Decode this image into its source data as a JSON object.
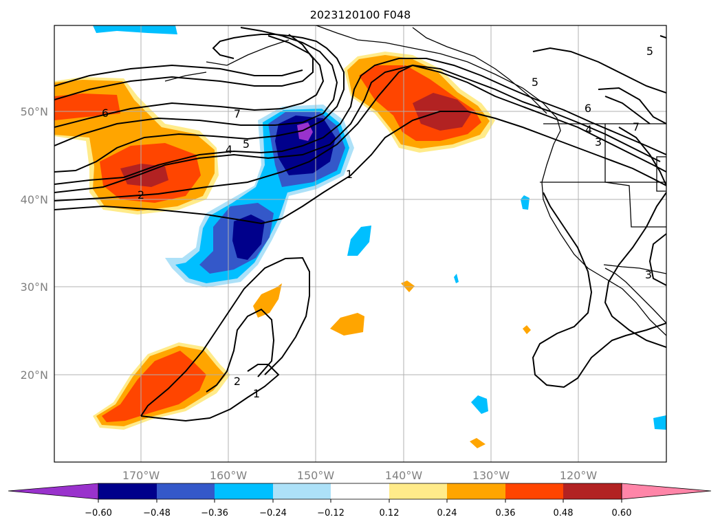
{
  "title": "2023120100 F048",
  "map": {
    "lat_labels": [
      "50°N",
      "40°N",
      "30°N",
      "20°N"
    ],
    "lon_labels": [
      "170°W",
      "160°W",
      "150°W",
      "140°W",
      "130°W",
      "120°W"
    ],
    "contour_labels": [
      "6",
      "7",
      "5",
      "4",
      "2",
      "1",
      "5",
      "6",
      "4",
      "3",
      "7",
      "5",
      "3",
      "2",
      "1"
    ]
  },
  "colorbar": {
    "ticks": [
      "−0.60",
      "−0.48",
      "−0.36",
      "−0.24",
      "−0.12",
      "0.12",
      "0.24",
      "0.36",
      "0.48",
      "0.60"
    ],
    "colors": [
      "#9932CC",
      "#00008B",
      "#3458C9",
      "#00BFFF",
      "#ADE1F8",
      "#FFFFFF",
      "#FFEB8A",
      "#FFA500",
      "#FF4500",
      "#B22222",
      "#FF85A8"
    ]
  }
}
